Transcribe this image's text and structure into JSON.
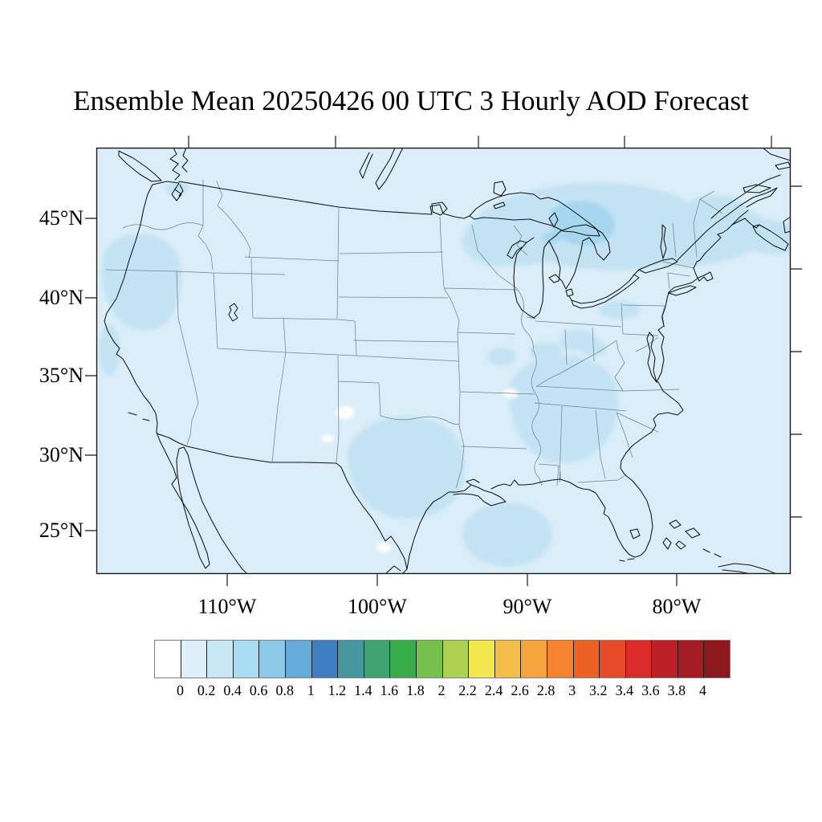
{
  "title": "Ensemble Mean 20250426 00 UTC 3 Hourly AOD Forecast",
  "map": {
    "y_axis_labels": [
      "45°N",
      "40°N",
      "35°N",
      "30°N",
      "25°N"
    ],
    "x_axis_labels": [
      "110°W",
      "100°W",
      "90°W",
      "80°W"
    ],
    "base_color": "#daedf8",
    "shade_light": "#c3e3f4",
    "shade_medium": "#a7d7f0",
    "aod_regions": [
      {
        "region": "Background CONUS and ocean",
        "approx_aod": "0-0.2"
      },
      {
        "region": "Pacific Northwest / Oregon / Northern California",
        "approx_aod": "0.2-0.4"
      },
      {
        "region": "Great Lakes / Southern Ontario / Quebec band to Atlantic",
        "approx_aod": "0.2-0.6"
      },
      {
        "region": "Ohio Valley / Pennsylvania spots",
        "approx_aod": "0.2"
      },
      {
        "region": "Southeast (Tennessee / Alabama / Georgia)",
        "approx_aod": "0.2"
      },
      {
        "region": "Central and East Texas",
        "approx_aod": "0.2-0.4"
      },
      {
        "region": "Gulf of Mexico off Louisiana",
        "approx_aod": "0.2"
      }
    ]
  },
  "colorbar": {
    "tick_labels": [
      "0",
      "0.2",
      "0.4",
      "0.6",
      "0.8",
      "1",
      "1.2",
      "1.4",
      "1.6",
      "1.8",
      "2",
      "2.2",
      "2.4",
      "2.6",
      "2.8",
      "3",
      "3.2",
      "3.4",
      "3.6",
      "3.8",
      "4"
    ],
    "cell_colors": [
      "#ffffff",
      "#e0f0fa",
      "#c9e8f7",
      "#aadcf3",
      "#8cc9e9",
      "#65abd9",
      "#3f7fc1",
      "#46989e",
      "#41a272",
      "#38ab4a",
      "#77c14f",
      "#aed152",
      "#f2e950",
      "#f5bd4a",
      "#f6a43f",
      "#f5822f",
      "#ee6125",
      "#e64a28",
      "#d92b29",
      "#bc2026",
      "#a31c22",
      "#8b181d"
    ]
  }
}
